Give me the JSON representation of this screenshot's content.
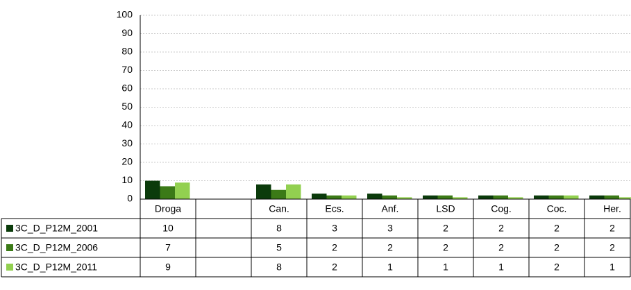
{
  "chart_data": {
    "type": "bar",
    "categories": [
      "Droga",
      null,
      "Can.",
      "Ecs.",
      "Anf.",
      "LSD",
      "Cog.",
      "Coc.",
      "Her."
    ],
    "series": [
      {
        "name": "3C_D_P12M_2001",
        "color": "#0b3b0b",
        "values": [
          10,
          null,
          8,
          3,
          3,
          2,
          2,
          2,
          2
        ]
      },
      {
        "name": "3C_D_P12M_2006",
        "color": "#3b7a17",
        "values": [
          7,
          null,
          5,
          2,
          2,
          2,
          2,
          2,
          2
        ]
      },
      {
        "name": "3C_D_P12M_2011",
        "color": "#92d050",
        "values": [
          9,
          null,
          8,
          2,
          1,
          1,
          1,
          2,
          1
        ]
      }
    ],
    "ylim": [
      0,
      100
    ],
    "yticks": [
      0,
      10,
      20,
      30,
      40,
      50,
      60,
      70,
      80,
      90,
      100
    ],
    "grid": true
  }
}
